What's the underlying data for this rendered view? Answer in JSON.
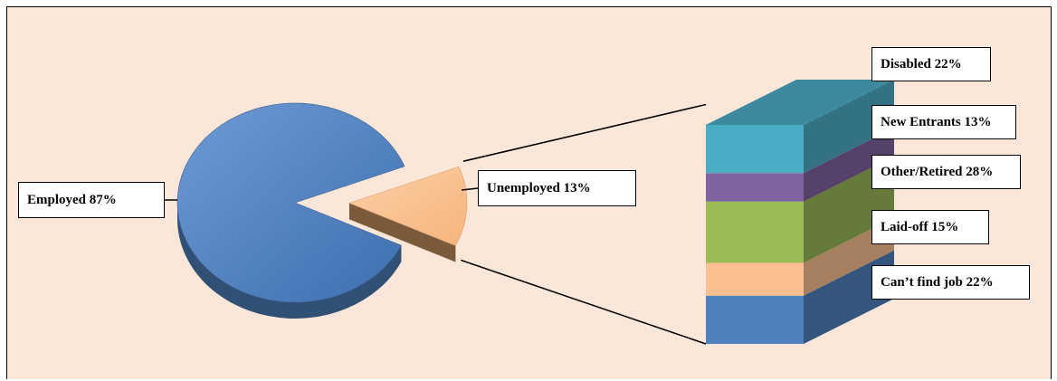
{
  "chart_data": {
    "type": "pie",
    "pie": {
      "slices": [
        {
          "label": "Employed 87%",
          "value": 87,
          "color": "#4f81bd"
        },
        {
          "label": "Unemployed 13%",
          "value": 13,
          "color": "#fac090",
          "exploded": true
        }
      ]
    },
    "breakdown": {
      "type": "stacked-bar",
      "of": "Unemployed",
      "segments": [
        {
          "label": "Can’t find job 22%",
          "value": 22,
          "color": "#4f81bd"
        },
        {
          "label": "Laid-off 15%",
          "value": 15,
          "color": "#fac090"
        },
        {
          "label": "Other/Retired 28%",
          "value": 28,
          "color": "#9bbb59"
        },
        {
          "label": "New Entrants 13%",
          "value": 13,
          "color": "#8064a2"
        },
        {
          "label": "Disabled 22%",
          "value": 22,
          "color": "#4bacc6"
        }
      ]
    }
  }
}
